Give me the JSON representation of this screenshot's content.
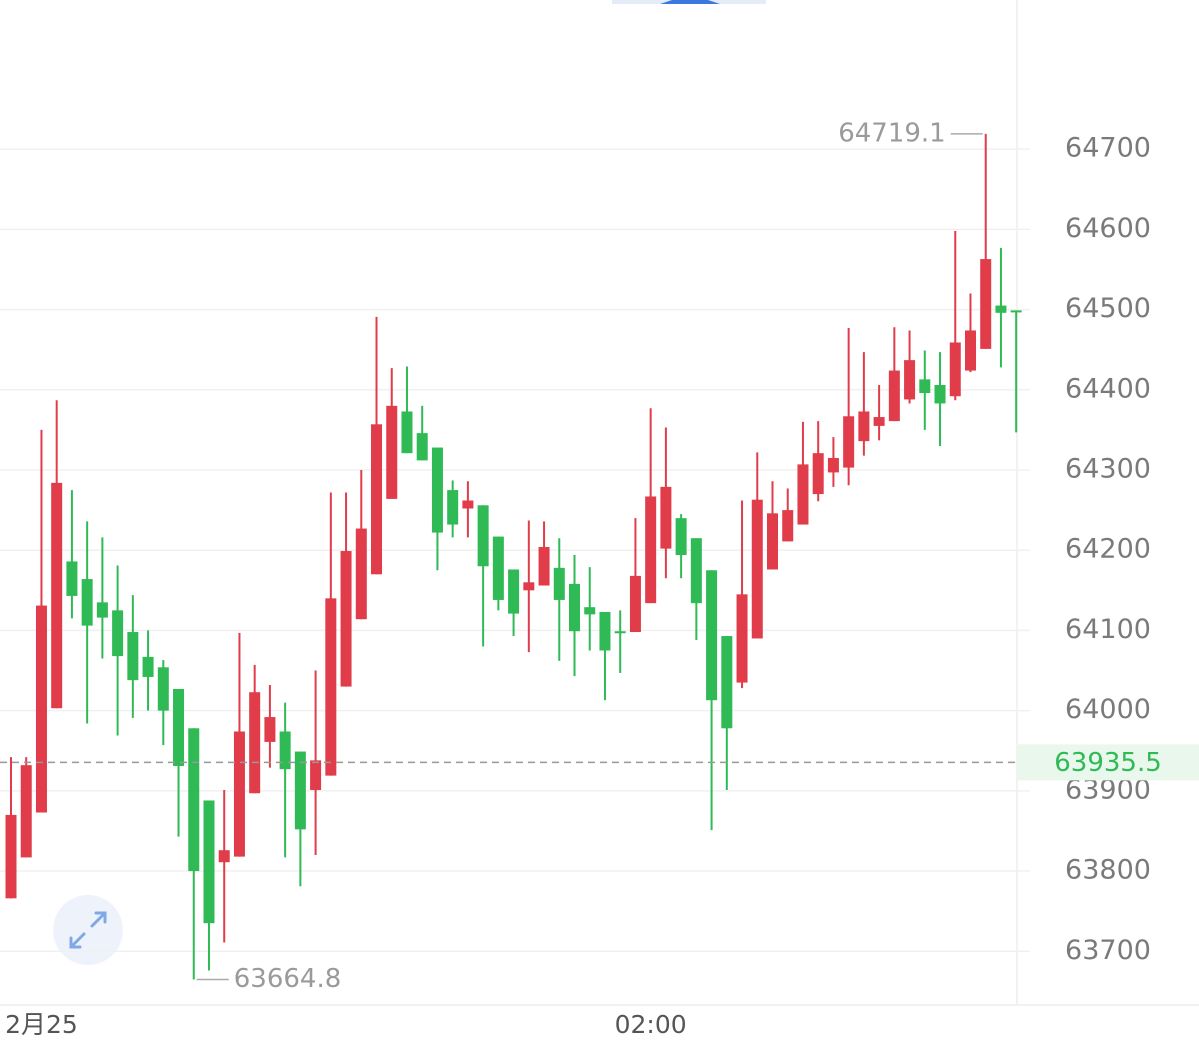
{
  "chart_data": {
    "type": "candlestick",
    "categories": [
      null,
      null,
      "2月25",
      null,
      null,
      null,
      null,
      null,
      null,
      null,
      null,
      null,
      null,
      null,
      null,
      null,
      null,
      null,
      null,
      null,
      null,
      null,
      null,
      null,
      null,
      null,
      null,
      null,
      null,
      null,
      null,
      null,
      null,
      null,
      null,
      null,
      null,
      null,
      null,
      null,
      null,
      null,
      "02:00",
      null,
      null,
      null,
      null,
      null,
      null,
      null,
      null,
      null,
      null,
      null,
      null,
      null,
      null,
      null,
      null,
      null,
      null,
      null,
      null,
      null,
      null,
      null,
      null
    ],
    "open": [
      63766,
      63817,
      63873,
      64003,
      64186,
      64164,
      64135,
      64125,
      64098,
      64067,
      64054,
      64027,
      63978,
      63888,
      63811,
      63818,
      63897,
      63961,
      63974,
      63949,
      63901,
      63919,
      64030,
      64114,
      64170,
      64264,
      64373,
      64346,
      64328,
      64275,
      64252,
      64256,
      64217,
      64176,
      64150,
      64156,
      64178,
      64158,
      64129,
      64123,
      64099,
      64098,
      64134,
      64202,
      64240,
      64215,
      64175,
      64093,
      64035,
      64090,
      64176,
      64211,
      64232,
      64270,
      64297,
      64303,
      64336,
      64355,
      64361,
      64388,
      64413,
      64406,
      64392,
      64424,
      64451,
      64505,
      64499
    ],
    "high": [
      63942,
      63942,
      64350,
      64387,
      64275,
      64236,
      64216,
      64181,
      64144,
      64100,
      64063,
      64027,
      63978,
      63888,
      63901,
      64097,
      64057,
      64032,
      64010,
      63949,
      64050,
      64272,
      64272,
      64300,
      64491,
      64427,
      64429,
      64380,
      64328,
      64287,
      64286,
      64256,
      64217,
      64176,
      64237,
      64236,
      64215,
      64194,
      64179,
      64123,
      64125,
      64240,
      64377,
      64353,
      64245,
      64215,
      64175,
      64093,
      64262,
      64322,
      64286,
      64277,
      64360,
      64361,
      64341,
      64477,
      64447,
      64406,
      64478,
      64474,
      64449,
      64447,
      64598,
      64520,
      64719.1,
      64577,
      64499
    ],
    "low": [
      63766,
      63817,
      63873,
      64003,
      64115,
      63984,
      64065,
      63969,
      63991,
      64000,
      63957,
      63843,
      63664.8,
      63676,
      63711,
      63818,
      63897,
      63929,
      63817,
      63781,
      63820,
      63919,
      64030,
      64114,
      64170,
      64264,
      64321,
      64312,
      64175,
      64216,
      64216,
      64080,
      64125,
      64093,
      64073,
      64156,
      64062,
      64043,
      64075,
      64013,
      64047,
      64098,
      64134,
      64165,
      64165,
      64088,
      63851,
      63901,
      64028,
      64090,
      64176,
      64211,
      64232,
      64261,
      64279,
      64281,
      64318,
      64337,
      64361,
      64383,
      64350,
      64330,
      64387,
      64422,
      64451,
      64428,
      64347
    ],
    "close": [
      63870,
      63932,
      64131,
      64284,
      64143,
      64106,
      64116,
      64068,
      64038,
      64042,
      64000,
      63931,
      63800,
      63735,
      63826,
      63974,
      64023,
      63992,
      63927,
      63852,
      63938,
      64140,
      64199,
      64227,
      64357,
      64380,
      64321,
      64312,
      64222,
      64232,
      64262,
      64180,
      64138,
      64121,
      64160,
      64204,
      64138,
      64099,
      64120,
      64075,
      64097,
      64168,
      64267,
      64279,
      64194,
      64134,
      64013,
      63978,
      64145,
      64263,
      64246,
      64250,
      64307,
      64321,
      64315,
      64367,
      64373,
      64366,
      64424,
      64437,
      64396,
      64383,
      64459,
      64474,
      64563,
      64496,
      64497
    ],
    "up_color": "#e03c4a",
    "down_color": "#2fba55",
    "last_price": 63935.5,
    "ylim": [
      63633,
      64886
    ],
    "yticks": [
      63700,
      63800,
      63900,
      64000,
      64100,
      64200,
      64300,
      64400,
      64500,
      64600,
      64700
    ],
    "grid": true
  }
}
